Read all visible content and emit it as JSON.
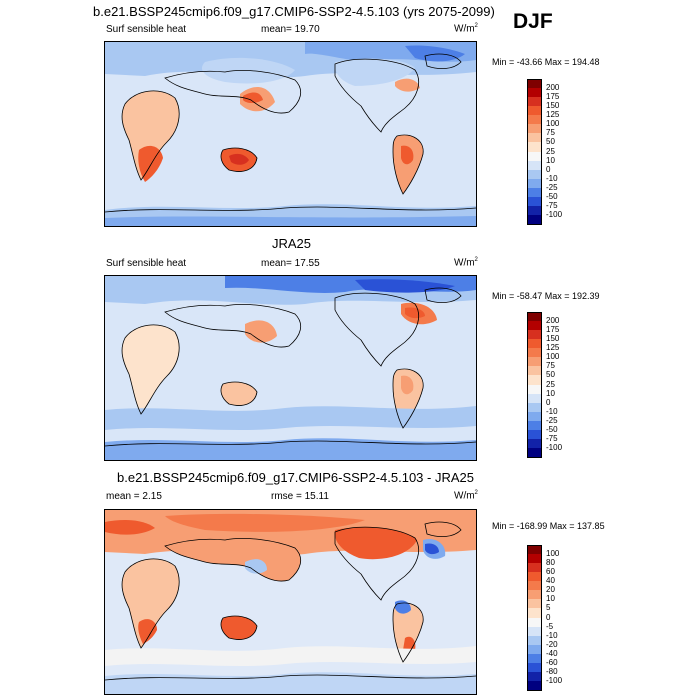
{
  "season": "DJF",
  "panels": [
    {
      "title": "b.e21.BSSP245cmip6.f09_g17.CMIP6-SSP2-4.5.103 (yrs 2075-2099)",
      "left_label": "Surf sensible heat",
      "center_label": "mean=  19.70",
      "units": "W/m",
      "units_sup": "2",
      "minmax": "Min = -43.66 Max = 194.48",
      "colorbar": {
        "ticks": [
          "200",
          "175",
          "150",
          "125",
          "100",
          "75",
          "50",
          "25",
          "10",
          "0",
          "-10",
          "-25",
          "-50",
          "-75",
          "-100"
        ],
        "colors": [
          "#7f0000",
          "#b30000",
          "#d7301f",
          "#ef5a2e",
          "#f47a4b",
          "#f79e73",
          "#fac3a0",
          "#fde3cc",
          "#f7f7f7",
          "#d6e4f7",
          "#a9c8f2",
          "#7faaee",
          "#4d7fe6",
          "#2a52d6",
          "#1222a8",
          "#000080"
        ]
      },
      "contour_map_fields": {
        "land_warm": "#f7a782",
        "ocean_neutral": "#dbe7f8"
      }
    },
    {
      "title": "JRA25",
      "left_label": "Surf sensible heat",
      "center_label": "mean=  17.55",
      "units": "W/m",
      "units_sup": "2",
      "minmax": "Min = -58.47 Max = 192.39",
      "colorbar": {
        "ticks": [
          "200",
          "175",
          "150",
          "125",
          "100",
          "75",
          "50",
          "25",
          "10",
          "0",
          "-10",
          "-25",
          "-50",
          "-75",
          "-100"
        ],
        "colors": [
          "#7f0000",
          "#b30000",
          "#d7301f",
          "#ef5a2e",
          "#f47a4b",
          "#f79e73",
          "#fac3a0",
          "#fde3cc",
          "#f7f7f7",
          "#d6e4f7",
          "#a9c8f2",
          "#7faaee",
          "#4d7fe6",
          "#2a52d6",
          "#1222a8",
          "#000080"
        ]
      }
    },
    {
      "title": "b.e21.BSSP245cmip6.f09_g17.CMIP6-SSP2-4.5.103 - JRA25",
      "left_label": "mean =   2.15",
      "center_label": "rmse =  15.11",
      "units": "W/m",
      "units_sup": "2",
      "minmax": "Min = -168.99 Max = 137.85",
      "colorbar": {
        "ticks": [
          "100",
          "80",
          "60",
          "40",
          "20",
          "10",
          "5",
          "0",
          "-5",
          "-10",
          "-20",
          "-40",
          "-60",
          "-80",
          "-100"
        ],
        "colors": [
          "#7f0000",
          "#b30000",
          "#d7301f",
          "#ef5a2e",
          "#f47a4b",
          "#f79e73",
          "#fac3a0",
          "#fde3cc",
          "#f7f7f7",
          "#d6e4f7",
          "#a9c8f2",
          "#7faaee",
          "#4d7fe6",
          "#2a52d6",
          "#1222a8",
          "#000080"
        ]
      }
    }
  ]
}
